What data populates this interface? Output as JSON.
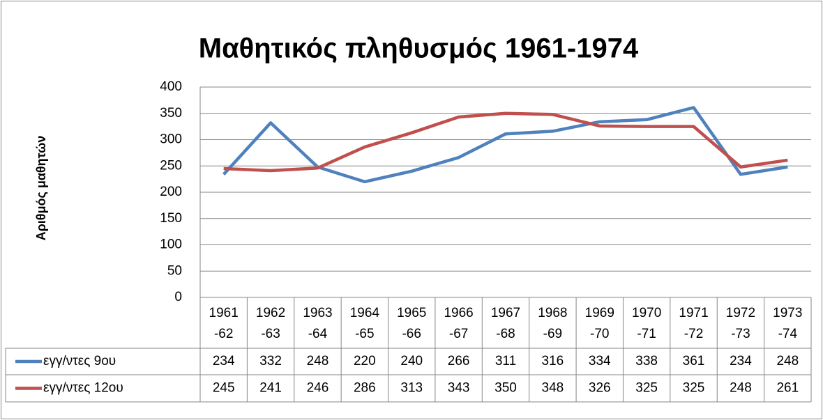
{
  "chart_data": {
    "type": "line",
    "title": "Μαθητικός πληθυσμός 1961-1974",
    "y_label": "Αριθμός μαθητών",
    "categories": [
      "1961-62",
      "1962-63",
      "1963-64",
      "1964-65",
      "1965-66",
      "1966-67",
      "1967-68",
      "1968-69",
      "1969-70",
      "1970-71",
      "1971-72",
      "1972-73",
      "1973-74"
    ],
    "series": [
      {
        "name": "εγγ/ντες 9ου",
        "color": "#4f81bd",
        "values": [
          234,
          332,
          248,
          220,
          240,
          266,
          311,
          316,
          334,
          338,
          361,
          234,
          248
        ]
      },
      {
        "name": "εγγ/ντες 12ου",
        "color": "#c0504d",
        "values": [
          245,
          241,
          246,
          286,
          313,
          343,
          350,
          348,
          326,
          325,
          325,
          248,
          261
        ]
      }
    ],
    "ylim": [
      0,
      400
    ],
    "yticks": [
      0,
      50,
      100,
      150,
      200,
      250,
      300,
      350,
      400
    ],
    "grid": true,
    "data_table": true
  }
}
